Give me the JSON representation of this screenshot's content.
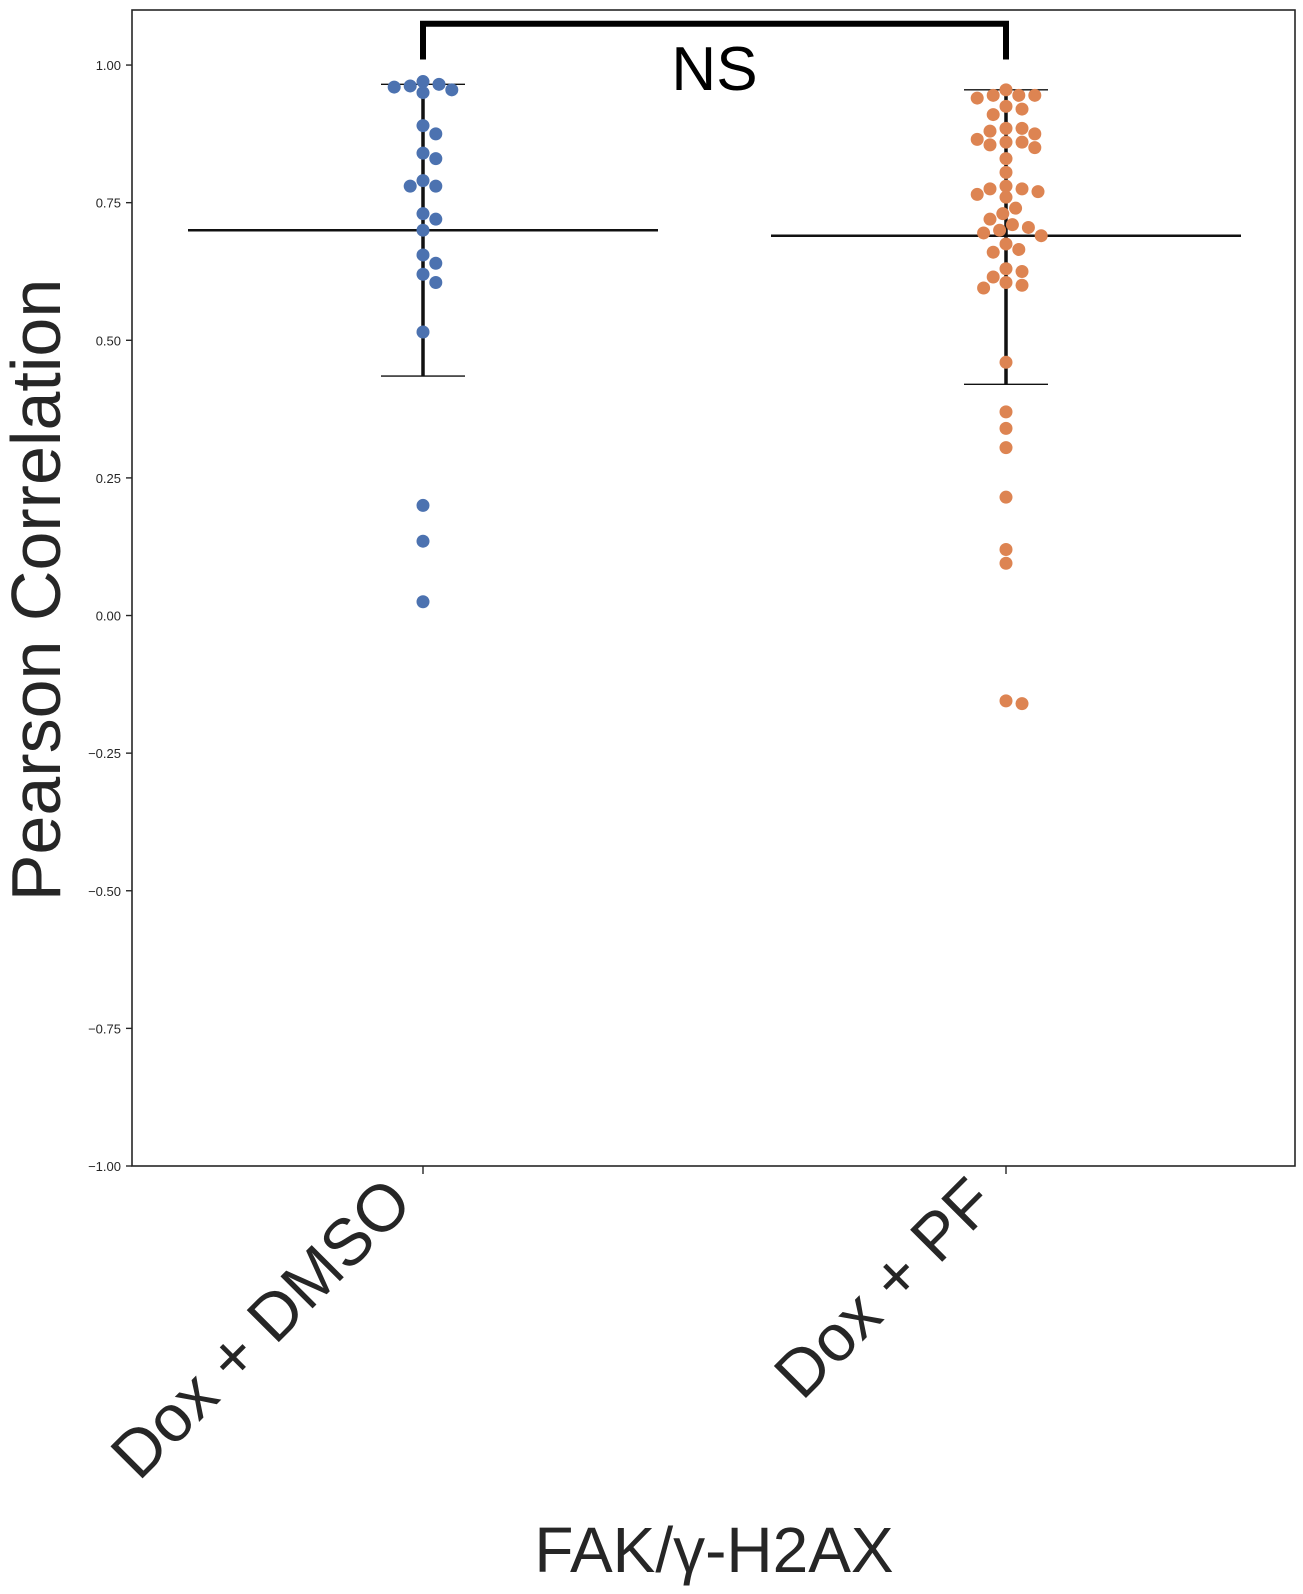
{
  "chart_data": {
    "type": "scatter",
    "subtype": "swarm-with-mean-and-sd",
    "title": "",
    "xlabel": "FAK/γ-H2AX",
    "ylabel": "Pearson Correlation",
    "ylim": [
      -1.0,
      1.1
    ],
    "y_ticks": [
      -1.0,
      -0.75,
      -0.5,
      -0.25,
      0.0,
      0.25,
      0.5,
      0.75,
      1.0
    ],
    "y_tick_labels": [
      "−1.00",
      "−0.75",
      "−0.50",
      "−0.25",
      "0.00",
      "0.25",
      "0.50",
      "0.75",
      "1.00"
    ],
    "categories": [
      "Dox + DMSO",
      "Dox + PF"
    ],
    "grid": false,
    "legend": "none",
    "series": [
      {
        "category": "Dox + DMSO",
        "color": "#4c72b0",
        "mean": 0.7,
        "sd_upper": 0.965,
        "sd_lower": 0.435,
        "values": [
          0.97,
          0.965,
          0.962,
          0.96,
          0.955,
          0.95,
          0.89,
          0.875,
          0.84,
          0.83,
          0.79,
          0.78,
          0.78,
          0.73,
          0.72,
          0.7,
          0.655,
          0.64,
          0.62,
          0.605,
          0.515,
          0.2,
          0.135,
          0.025
        ]
      },
      {
        "category": "Dox + PF",
        "color": "#dd8452",
        "mean": 0.69,
        "sd_upper": 0.955,
        "sd_lower": 0.42,
        "values": [
          0.955,
          0.945,
          0.945,
          0.945,
          0.94,
          0.925,
          0.92,
          0.91,
          0.885,
          0.885,
          0.88,
          0.875,
          0.865,
          0.86,
          0.86,
          0.855,
          0.85,
          0.83,
          0.805,
          0.78,
          0.775,
          0.775,
          0.77,
          0.765,
          0.76,
          0.74,
          0.73,
          0.72,
          0.71,
          0.705,
          0.7,
          0.695,
          0.69,
          0.675,
          0.665,
          0.66,
          0.63,
          0.625,
          0.615,
          0.605,
          0.6,
          0.595,
          0.46,
          0.37,
          0.34,
          0.305,
          0.215,
          0.12,
          0.095,
          -0.155,
          -0.16
        ]
      }
    ],
    "annotation": {
      "text": "NS",
      "between": [
        "Dox + DMSO",
        "Dox + PF"
      ],
      "bracket_y": 1.075,
      "bracket_drop_y": 1.01
    }
  }
}
